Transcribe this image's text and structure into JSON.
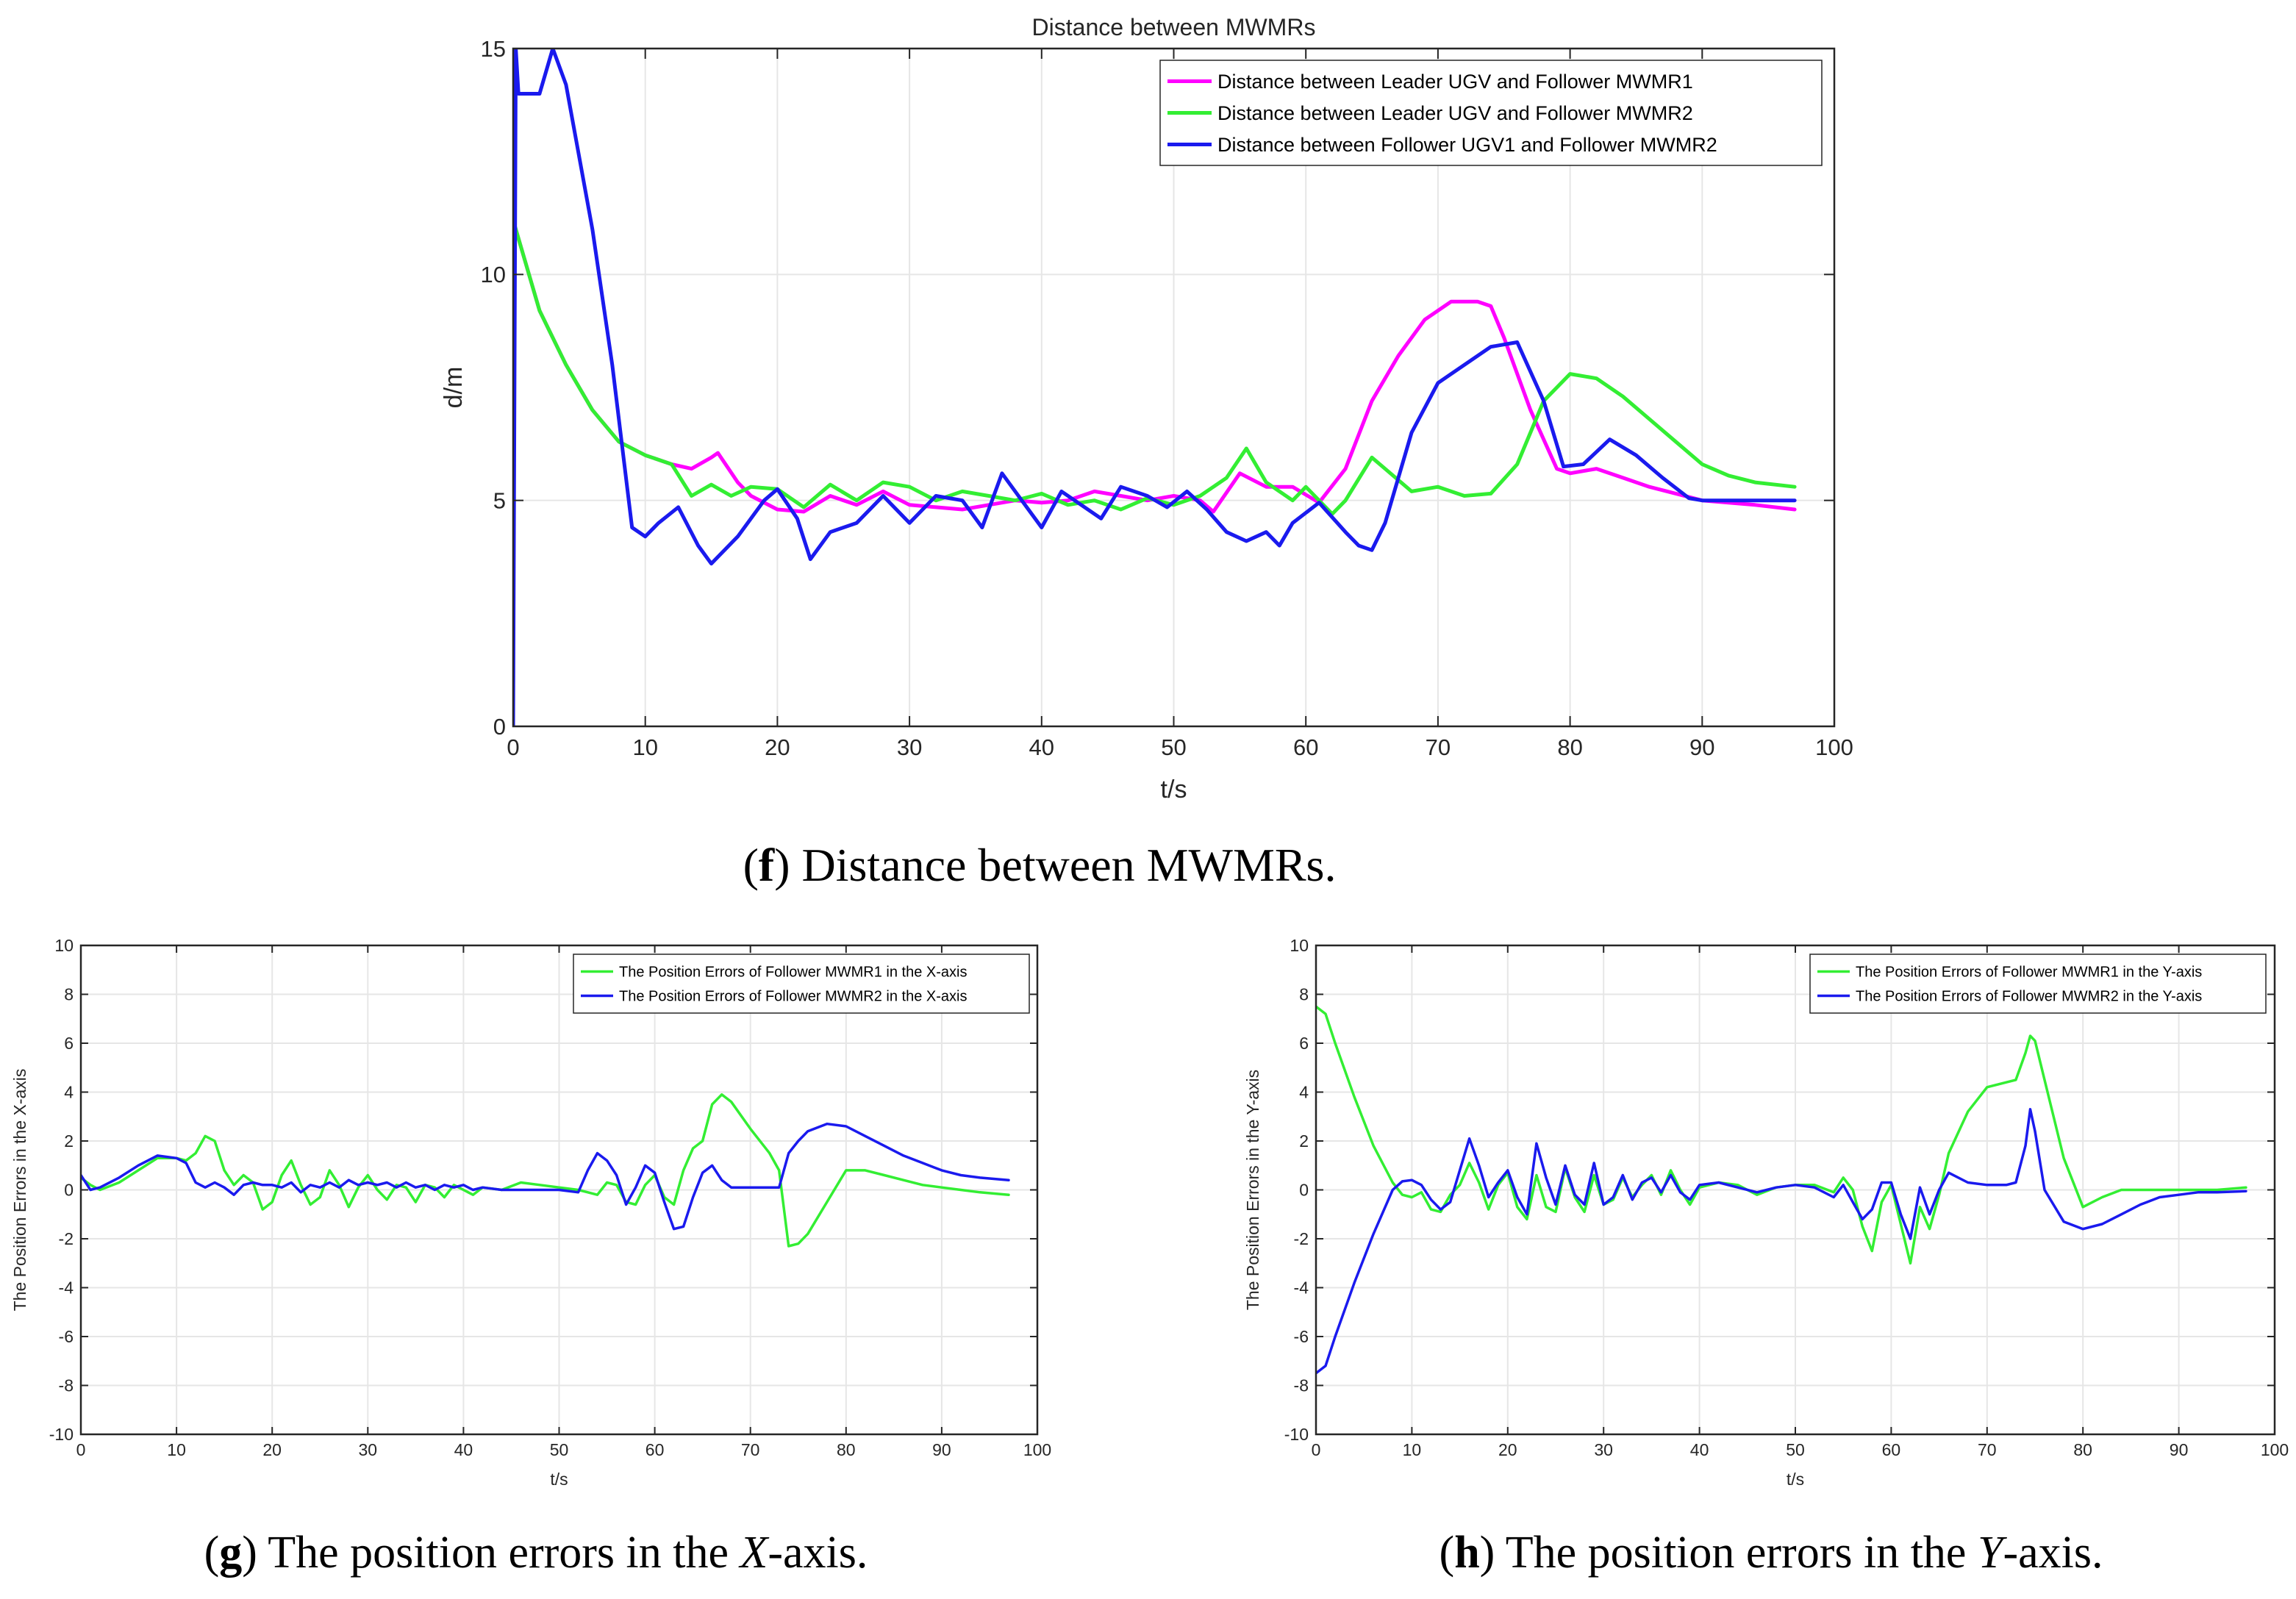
{
  "colors": {
    "magenta": "#ff00ff",
    "green": "#33ee33",
    "blue": "#1a1aee"
  },
  "chart_data": [
    {
      "id": "f",
      "type": "line",
      "title": "Distance between MWMRs",
      "xlabel": "t/s",
      "ylabel": "d/m",
      "xlim": [
        0,
        100
      ],
      "ylim": [
        0,
        15
      ],
      "xticks": [
        0,
        10,
        20,
        30,
        40,
        50,
        60,
        70,
        80,
        90,
        100
      ],
      "yticks": [
        0,
        5,
        10,
        15
      ],
      "grid": true,
      "legend_position": "top-right",
      "caption": {
        "letter": "f",
        "text": ") Distance between MWMRs.",
        "italic": "",
        "after": ""
      },
      "series": [
        {
          "name": "Distance between Leader UGV and Follower MWMR1",
          "color": "#ff00ff",
          "x": [
            0,
            2,
            4,
            6,
            8,
            10,
            12,
            13.5,
            15,
            15.5,
            17,
            18,
            20,
            22,
            24,
            26,
            28,
            30,
            32,
            34,
            36,
            38,
            40,
            42,
            44,
            46,
            48,
            50,
            52,
            53,
            55,
            57,
            59,
            61,
            63,
            65,
            67,
            69,
            71,
            73,
            74,
            75,
            77,
            79,
            80,
            82,
            84,
            86,
            88,
            90,
            92,
            94,
            97
          ],
          "values": [
            11.2,
            9.2,
            8.0,
            7.0,
            6.3,
            6.0,
            5.8,
            5.7,
            5.95,
            6.05,
            5.4,
            5.1,
            4.8,
            4.75,
            5.1,
            4.9,
            5.2,
            4.9,
            4.85,
            4.8,
            4.9,
            5.0,
            4.95,
            5.0,
            5.2,
            5.1,
            5.0,
            5.1,
            5.0,
            4.75,
            5.6,
            5.3,
            5.3,
            4.95,
            5.7,
            7.2,
            8.2,
            9.0,
            9.4,
            9.4,
            9.3,
            8.6,
            7.0,
            5.7,
            5.6,
            5.7,
            5.5,
            5.3,
            5.15,
            5.0,
            4.95,
            4.9,
            4.8
          ]
        },
        {
          "name": "Distance between Leader UGV and Follower MWMR2",
          "color": "#33ee33",
          "x": [
            0,
            2,
            4,
            6,
            8,
            10,
            12,
            13.5,
            15,
            16.5,
            18,
            20,
            22,
            24,
            26,
            28,
            30,
            32,
            34,
            36,
            38,
            40,
            42,
            44,
            46,
            48,
            50,
            52,
            54,
            55.5,
            57,
            59,
            60,
            62,
            63,
            65,
            66,
            68,
            70,
            72,
            74,
            76,
            78,
            80,
            82,
            84,
            86,
            88,
            90,
            92,
            94,
            97
          ],
          "values": [
            11.2,
            9.2,
            8.0,
            7.0,
            6.3,
            6.0,
            5.8,
            5.1,
            5.35,
            5.1,
            5.3,
            5.25,
            4.85,
            5.35,
            5.0,
            5.4,
            5.3,
            5.0,
            5.2,
            5.1,
            5.0,
            5.15,
            4.9,
            5.0,
            4.8,
            5.05,
            4.9,
            5.1,
            5.5,
            6.15,
            5.4,
            5.0,
            5.3,
            4.7,
            5.0,
            5.95,
            5.7,
            5.2,
            5.3,
            5.1,
            5.15,
            5.8,
            7.2,
            7.8,
            7.7,
            7.3,
            6.8,
            6.3,
            5.8,
            5.55,
            5.4,
            5.3
          ]
        },
        {
          "name": "Distance between Follower UGV1 and Follower MWMR2",
          "color": "#1a1aee",
          "x": [
            0,
            0.2,
            0.4,
            0.8,
            2,
            3,
            4,
            6,
            7.5,
            9,
            10,
            11,
            12.5,
            14,
            15,
            17,
            19,
            20,
            21.5,
            22.5,
            24,
            26,
            28,
            30,
            32,
            34,
            35.5,
            37,
            38.5,
            40,
            41.5,
            43,
            44.5,
            46,
            48,
            49.5,
            51,
            52.5,
            54,
            55.5,
            57,
            58,
            59,
            61,
            63,
            64,
            65,
            66,
            68,
            70,
            72,
            74,
            76,
            78,
            79.5,
            81,
            83,
            85,
            87,
            89,
            90,
            92,
            94,
            97
          ],
          "values": [
            0,
            15,
            14,
            14,
            14,
            15,
            14.2,
            11.0,
            8.0,
            4.4,
            4.2,
            4.5,
            4.85,
            4.0,
            3.6,
            4.2,
            5.0,
            5.25,
            4.6,
            3.7,
            4.3,
            4.5,
            5.1,
            4.5,
            5.1,
            5.0,
            4.4,
            5.6,
            5.0,
            4.4,
            5.2,
            4.9,
            4.6,
            5.3,
            5.1,
            4.85,
            5.2,
            4.8,
            4.3,
            4.1,
            4.3,
            4.0,
            4.5,
            4.95,
            4.3,
            4.0,
            3.9,
            4.5,
            6.5,
            7.6,
            8.0,
            8.4,
            8.5,
            7.2,
            5.75,
            5.8,
            6.35,
            6.0,
            5.5,
            5.05,
            5.0,
            5.0,
            5.0,
            5.0
          ]
        }
      ]
    },
    {
      "id": "g",
      "type": "line",
      "title": "",
      "xlabel": "t/s",
      "ylabel": "The Position Errors in the X-axis",
      "xlim": [
        0,
        100
      ],
      "ylim": [
        -10,
        10
      ],
      "xticks": [
        0,
        10,
        20,
        30,
        40,
        50,
        60,
        70,
        80,
        90,
        100
      ],
      "yticks": [
        -10,
        -8,
        -6,
        -4,
        -2,
        0,
        2,
        4,
        6,
        8,
        10
      ],
      "grid": true,
      "legend_position": "top-right",
      "caption": {
        "letter": "g",
        "text": ") The position errors in the ",
        "italic": "X",
        "after": "-axis."
      },
      "series": [
        {
          "name": "The Position Errors of Follower MWMR1 in the X-axis",
          "color": "#33ee33",
          "x": [
            0,
            1,
            2,
            4,
            6,
            8,
            10,
            11,
            12,
            13,
            14,
            15,
            16,
            17,
            18,
            19,
            20,
            21,
            22,
            23,
            24,
            25,
            26,
            27,
            28,
            29,
            30,
            31,
            32,
            33,
            34,
            35,
            36,
            37,
            38,
            39,
            40,
            41,
            42,
            44,
            46,
            48,
            50,
            52,
            53,
            54,
            55,
            56,
            57,
            58,
            59,
            60,
            61,
            62,
            63,
            64,
            65,
            66,
            67,
            68,
            70,
            72,
            73,
            74,
            75,
            76,
            78,
            80,
            82,
            84,
            86,
            88,
            90,
            92,
            94,
            97
          ],
          "values": [
            0.5,
            0.2,
            0.0,
            0.3,
            0.8,
            1.3,
            1.3,
            1.2,
            1.5,
            2.2,
            2.0,
            0.8,
            0.2,
            0.6,
            0.3,
            -0.8,
            -0.5,
            0.6,
            1.2,
            0.2,
            -0.6,
            -0.3,
            0.8,
            0.2,
            -0.7,
            0.1,
            0.6,
            0.0,
            -0.4,
            0.2,
            0.1,
            -0.5,
            0.2,
            0.1,
            -0.3,
            0.2,
            0.0,
            -0.2,
            0.1,
            0.0,
            0.3,
            0.2,
            0.1,
            0.0,
            -0.1,
            -0.2,
            0.3,
            0.2,
            -0.5,
            -0.6,
            0.2,
            0.6,
            -0.3,
            -0.6,
            0.8,
            1.7,
            2.0,
            3.5,
            3.9,
            3.6,
            2.5,
            1.5,
            0.8,
            -2.3,
            -2.2,
            -1.8,
            -0.5,
            0.8,
            0.8,
            0.6,
            0.4,
            0.2,
            0.1,
            0.0,
            -0.1,
            -0.2
          ]
        },
        {
          "name": "The Position Errors of Follower MWMR2 in the X-axis",
          "color": "#1a1aee",
          "x": [
            0,
            1,
            2,
            4,
            6,
            8,
            10,
            11,
            12,
            13,
            14,
            15,
            16,
            17,
            18,
            19,
            20,
            21,
            22,
            23,
            24,
            25,
            26,
            27,
            28,
            29,
            30,
            31,
            32,
            33,
            34,
            35,
            36,
            37,
            38,
            39,
            40,
            41,
            42,
            44,
            46,
            48,
            50,
            52,
            53,
            54,
            55,
            56,
            57,
            58,
            59,
            60,
            61,
            62,
            63,
            64,
            65,
            66,
            67,
            68,
            70,
            72,
            73,
            74,
            75,
            76,
            78,
            80,
            82,
            84,
            86,
            88,
            90,
            92,
            94,
            97
          ],
          "values": [
            0.6,
            0.0,
            0.1,
            0.5,
            1.0,
            1.4,
            1.3,
            1.1,
            0.3,
            0.1,
            0.3,
            0.1,
            -0.2,
            0.2,
            0.3,
            0.2,
            0.2,
            0.1,
            0.3,
            -0.1,
            0.2,
            0.1,
            0.3,
            0.1,
            0.4,
            0.2,
            0.3,
            0.2,
            0.3,
            0.1,
            0.3,
            0.1,
            0.2,
            0.0,
            0.2,
            0.1,
            0.2,
            0.0,
            0.1,
            0.0,
            0.0,
            0.0,
            0.0,
            -0.1,
            0.8,
            1.5,
            1.2,
            0.6,
            -0.6,
            0.1,
            1.0,
            0.7,
            -0.5,
            -1.6,
            -1.5,
            -0.3,
            0.7,
            1.0,
            0.4,
            0.1,
            0.1,
            0.1,
            0.1,
            1.5,
            2.0,
            2.4,
            2.7,
            2.6,
            2.2,
            1.8,
            1.4,
            1.1,
            0.8,
            0.6,
            0.5,
            0.4
          ]
        }
      ]
    },
    {
      "id": "h",
      "type": "line",
      "title": "",
      "xlabel": "t/s",
      "ylabel": "The Position Errors in the Y-axis",
      "xlim": [
        0,
        100
      ],
      "ylim": [
        -10,
        10
      ],
      "xticks": [
        0,
        10,
        20,
        30,
        40,
        50,
        60,
        70,
        80,
        90,
        100
      ],
      "yticks": [
        -10,
        -8,
        -6,
        -4,
        -2,
        0,
        2,
        4,
        6,
        8,
        10
      ],
      "grid": true,
      "legend_position": "top-right",
      "caption": {
        "letter": "h",
        "text": ") The position errors in the ",
        "italic": "Y",
        "after": "-axis."
      },
      "series": [
        {
          "name": "The Position Errors of Follower MWMR1 in the Y-axis",
          "color": "#33ee33",
          "x": [
            0,
            1,
            2,
            4,
            6,
            8,
            9,
            10,
            11,
            12,
            13,
            14,
            15,
            16,
            17,
            18,
            19,
            20,
            21,
            22,
            23,
            24,
            25,
            26,
            27,
            28,
            29,
            30,
            31,
            32,
            33,
            34,
            35,
            36,
            37,
            38,
            39,
            40,
            42,
            44,
            46,
            48,
            50,
            52,
            54,
            55,
            56,
            57,
            58,
            59,
            60,
            61,
            62,
            63,
            64,
            65,
            66,
            68,
            70,
            72,
            73,
            74,
            74.5,
            75,
            76,
            78,
            80,
            82,
            84,
            86,
            88,
            90,
            92,
            94,
            97
          ],
          "values": [
            7.5,
            7.2,
            6.0,
            3.8,
            1.8,
            0.3,
            -0.2,
            -0.3,
            -0.1,
            -0.8,
            -0.9,
            -0.2,
            0.2,
            1.1,
            0.3,
            -0.8,
            0.2,
            0.7,
            -0.7,
            -1.2,
            0.6,
            -0.7,
            -0.9,
            0.9,
            -0.3,
            -0.9,
            0.6,
            -0.6,
            -0.4,
            0.5,
            -0.3,
            0.2,
            0.6,
            -0.2,
            0.8,
            0.0,
            -0.6,
            0.1,
            0.3,
            0.2,
            -0.2,
            0.1,
            0.2,
            0.2,
            -0.1,
            0.5,
            0.0,
            -1.5,
            -2.5,
            -0.5,
            0.2,
            -1.4,
            -3.0,
            -0.7,
            -1.6,
            -0.2,
            1.5,
            3.2,
            4.2,
            4.4,
            4.5,
            5.6,
            6.3,
            6.1,
            4.5,
            1.3,
            -0.7,
            -0.3,
            0.0,
            0.0,
            0.0,
            0.0,
            0.0,
            0.0,
            0.1
          ]
        },
        {
          "name": "The Position Errors of Follower MWMR2 in the Y-axis",
          "color": "#1a1aee",
          "x": [
            0,
            1,
            2,
            4,
            6,
            8,
            9,
            10,
            11,
            12,
            13,
            14,
            15,
            16,
            17,
            18,
            19,
            20,
            21,
            22,
            23,
            24,
            25,
            26,
            27,
            28,
            29,
            30,
            31,
            32,
            33,
            34,
            35,
            36,
            37,
            38,
            39,
            40,
            42,
            44,
            46,
            48,
            50,
            52,
            54,
            55,
            56,
            57,
            58,
            59,
            60,
            61,
            62,
            63,
            64,
            65,
            66,
            68,
            70,
            72,
            73,
            74,
            74.5,
            75,
            76,
            78,
            80,
            82,
            84,
            86,
            88,
            90,
            92,
            94,
            97
          ],
          "values": [
            -7.5,
            -7.2,
            -6.0,
            -3.8,
            -1.8,
            0.0,
            0.35,
            0.4,
            0.2,
            -0.4,
            -0.8,
            -0.5,
            0.8,
            2.1,
            1.0,
            -0.3,
            0.3,
            0.8,
            -0.3,
            -1.0,
            1.9,
            0.5,
            -0.6,
            1.0,
            -0.2,
            -0.6,
            1.1,
            -0.6,
            -0.3,
            0.6,
            -0.4,
            0.3,
            0.5,
            -0.1,
            0.6,
            -0.1,
            -0.4,
            0.2,
            0.3,
            0.1,
            -0.1,
            0.1,
            0.2,
            0.1,
            -0.3,
            0.2,
            -0.5,
            -1.2,
            -0.8,
            0.3,
            0.3,
            -1.0,
            -2.0,
            0.1,
            -1.0,
            0.0,
            0.7,
            0.3,
            0.2,
            0.2,
            0.3,
            1.8,
            3.3,
            2.4,
            0.0,
            -1.3,
            -1.6,
            -1.4,
            -1.0,
            -0.6,
            -0.3,
            -0.2,
            -0.1,
            -0.1,
            -0.05
          ]
        }
      ]
    }
  ]
}
